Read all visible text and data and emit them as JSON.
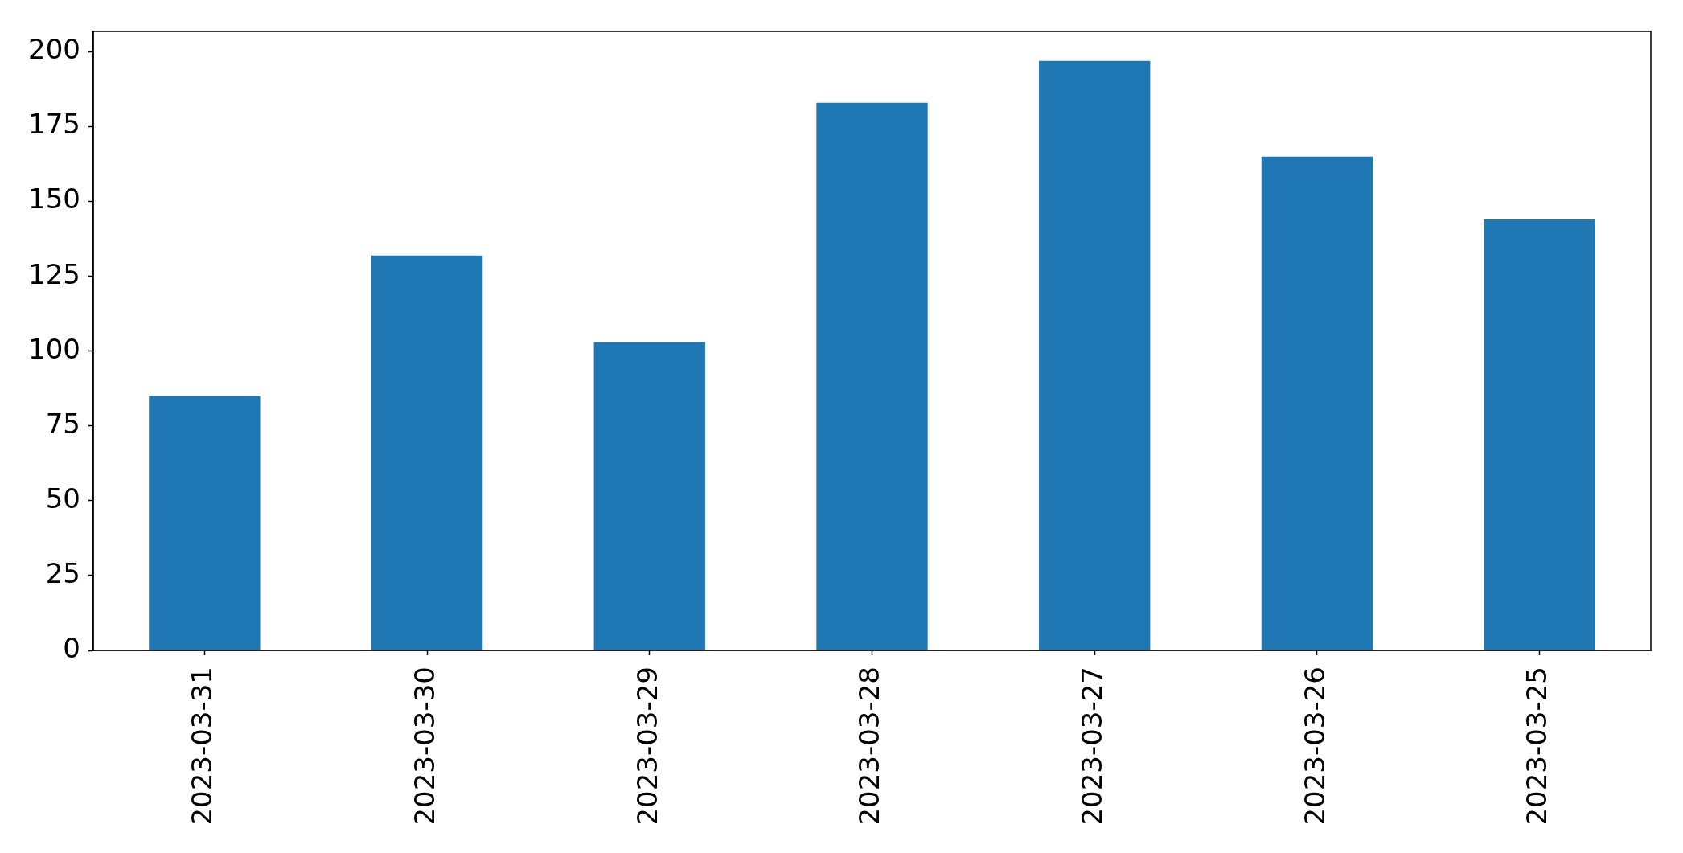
{
  "chart_data": {
    "type": "bar",
    "categories": [
      "2023-03-31",
      "2023-03-30",
      "2023-03-29",
      "2023-03-28",
      "2023-03-27",
      "2023-03-26",
      "2023-03-25"
    ],
    "values": [
      85,
      132,
      103,
      183,
      197,
      165,
      144
    ],
    "color": "#1f77b4",
    "ylim": [
      0,
      206.85
    ],
    "yticks": [
      0,
      25,
      50,
      75,
      100,
      125,
      150,
      175,
      200
    ],
    "grid": false
  }
}
